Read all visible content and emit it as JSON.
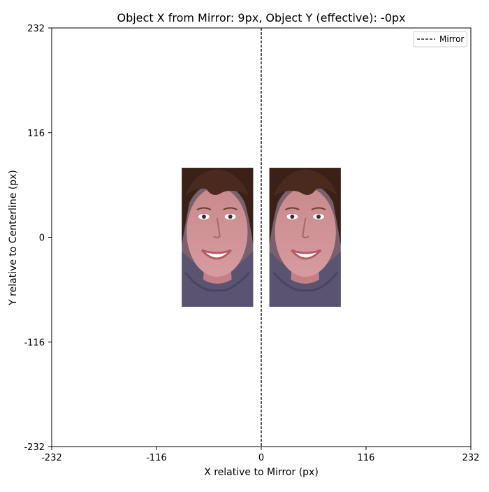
{
  "chart_data": {
    "type": "image-plot",
    "title": "Object X from Mirror: 9px, Object Y (effective): -0px",
    "xlabel": "X relative to Mirror (px)",
    "ylabel": "Y relative to Centerline (px)",
    "xlim": [
      -232,
      232
    ],
    "ylim": [
      -232,
      232
    ],
    "xticks": [
      -232,
      -116,
      0,
      116,
      232
    ],
    "yticks": [
      -232,
      -116,
      0,
      116,
      232
    ],
    "xtick_labels": [
      "-232",
      "-116",
      "0",
      "116",
      "232"
    ],
    "ytick_labels": [
      "-232",
      "-116",
      "0",
      "116",
      "232"
    ],
    "grid": false,
    "mirror": {
      "x": 0,
      "style": "dashed",
      "color": "#000000",
      "label": "Mirror"
    },
    "objects": [
      {
        "role": "object",
        "x_range": [
          9,
          88
        ],
        "y_range": [
          -77,
          77
        ],
        "flipped": false
      },
      {
        "role": "reflection",
        "x_range": [
          -88,
          -9
        ],
        "y_range": [
          -77,
          77
        ],
        "flipped": true
      }
    ],
    "legend": {
      "placement": "top-right",
      "entries": [
        "Mirror"
      ]
    },
    "colors": {
      "hair": "#3a2118",
      "skin": "#c98a8c",
      "sweater": "#5a5470",
      "lips": "#b55a66"
    }
  }
}
